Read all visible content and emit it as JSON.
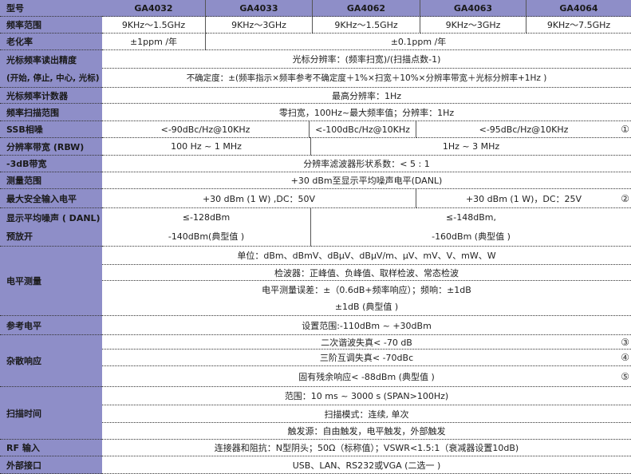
{
  "header": {
    "label": "型号",
    "models": [
      "GA4032",
      "GA4033",
      "GA4062",
      "GA4063",
      "GA4064"
    ]
  },
  "freq_range": {
    "label": "频率范围",
    "values": [
      "9KHz～1.5GHz",
      "9KHz～3GHz",
      "9KHz～1.5GHz",
      "9KHz～3GHz",
      "9KHz～7.5GHz"
    ]
  },
  "aging": {
    "label": "老化率",
    "values": [
      "±1ppm /年",
      "±0.1ppm /年"
    ]
  },
  "cursor_acc": {
    "label1": "光标频率读出精度",
    "label2": "(开始, 停止, 中心, 光标)",
    "value1": "光标分辨率：(频率扫宽)/(扫描点数-1)",
    "value2": "不确定度：±(频率指示×频率参考不确定度＋1%×扫宽＋10%×分辨率带宽＋光标分辨率+1Hz )"
  },
  "counter": {
    "label": "光标频率计数器",
    "value": "最高分辨率：1Hz"
  },
  "span": {
    "label": "频率扫描范围",
    "value": "零扫宽，100Hz~最大频率值；分辨率：1Hz"
  },
  "ssb": {
    "label": "SSB相噪",
    "values": [
      "<-90dBc/Hz@10KHz",
      "<-100dBc/Hz@10KHz",
      "<-95dBc/Hz@10KHz"
    ],
    "note": "①"
  },
  "rbw": {
    "label": "分辨率带宽 (RBW)",
    "values": [
      "100 Hz ~ 1 MHz",
      "1Hz ~ 3 MHz"
    ]
  },
  "bw3db": {
    "label": "-3dB带宽",
    "value": "分辨率滤波器形状系数：< 5 : 1"
  },
  "meas_range": {
    "label": "测量范围",
    "value": "+30 dBm至显示平均噪声电平(DANL)"
  },
  "max_input": {
    "label": "最大安全输入电平",
    "values": [
      "+30 dBm (1 W) ,DC：50V",
      "+30 dBm (1 W)，DC：25V"
    ],
    "note": "②"
  },
  "danl": {
    "label1": "显示平均噪声 ( DANL)",
    "label2": "预放开",
    "left": [
      "≤-128dBm",
      "-140dBm(典型值 )"
    ],
    "right": [
      "≤-148dBm,",
      "-160dBm (典型值 )"
    ]
  },
  "level": {
    "label": "电平测量",
    "lines": [
      "单位：dBm、dBmV、dBμV、dBμV/m、μV、mV、V、mW、W",
      "检波器：正峰值、负峰值、取样检波、常态检波",
      "电平测量误差：±（0.6dB+频率响应）；频响：±1dB",
      "±1dB (典型值 )"
    ]
  },
  "ref": {
    "label": "参考电平",
    "value": "设置范围:-110dBm ~ +30dBm"
  },
  "spur": {
    "label": "杂散响应",
    "lines": [
      "二次谐波失真< -70 dB",
      "三阶互调失真< -70dBc",
      "固有残余响应< -88dBm (典型值 )"
    ],
    "notes": [
      "③",
      "④",
      "⑤"
    ]
  },
  "sweep": {
    "label": "扫描时间",
    "lines": [
      "范围：10 ms ~ 3000 s (SPAN>100Hz)",
      "扫描模式：连续, 单次",
      "触发源：自由触发，电平触发，外部触发"
    ]
  },
  "rf": {
    "label": "RF 输入",
    "value": "连接器和阻抗：N型阴头；50Ω（标称值）；VSWR<1.5:1（衰减器设置10dB)"
  },
  "ext": {
    "label": "外部接口",
    "value": "USB、LAN、RS232或VGA (二选一 )"
  }
}
